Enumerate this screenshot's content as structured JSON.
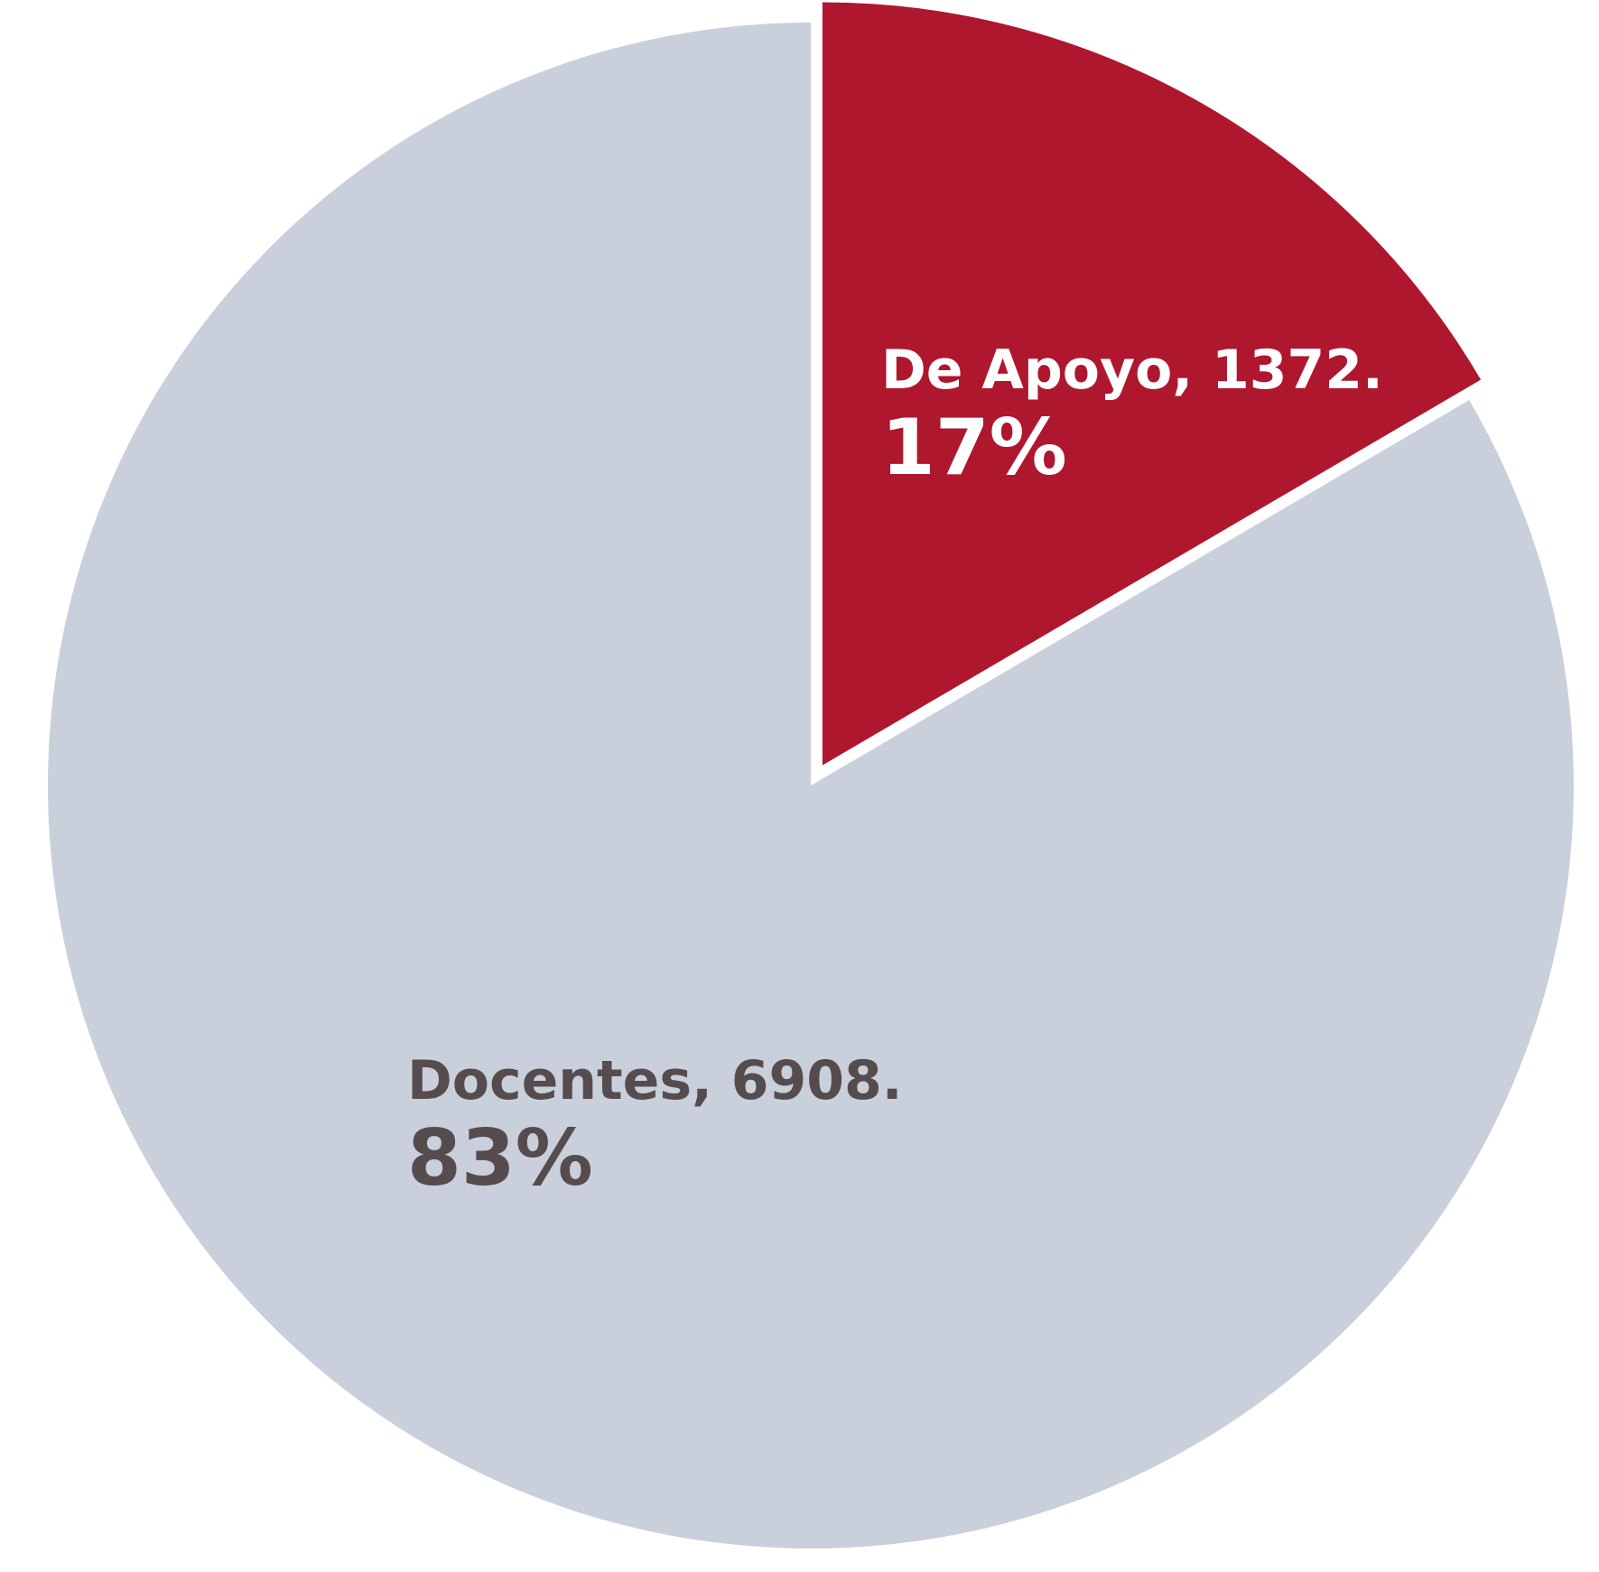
{
  "chart_data": {
    "type": "pie",
    "slices": [
      {
        "label": "De Apoyo",
        "value": 1372,
        "percent": 17,
        "color": "#AE172E",
        "text_color": "#FFFFFF",
        "label_text": "De Apoyo, 1372.",
        "percent_text": "17%",
        "exploded": true
      },
      {
        "label": "Docentes",
        "value": 6908,
        "percent": 83,
        "color": "#C9D0DC",
        "text_color": "#564C4E",
        "label_text": "Docentes, 6908.",
        "percent_text": "83%",
        "exploded": false
      }
    ],
    "start": "12 o'clock",
    "direction": "clockwise"
  }
}
